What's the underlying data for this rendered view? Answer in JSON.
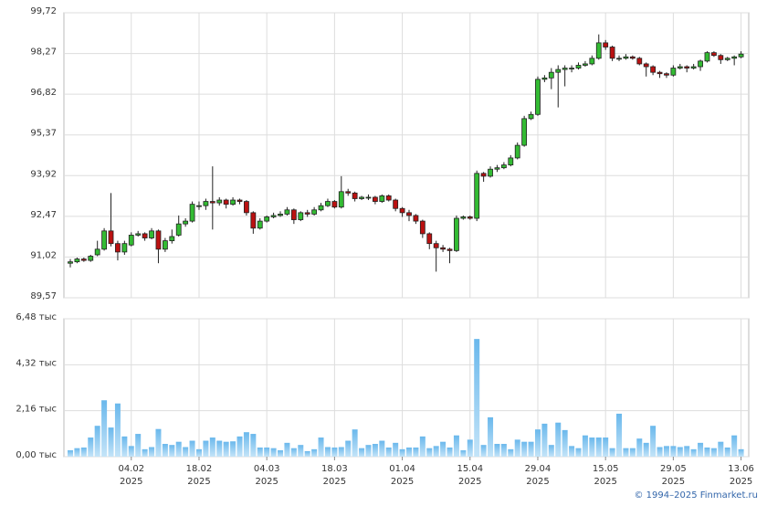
{
  "chart_data": [
    {
      "type": "candlestick",
      "open": [
        90.8,
        90.85,
        90.95,
        90.9,
        91.1,
        91.3,
        91.95,
        91.5,
        91.2,
        91.45,
        91.8,
        91.85,
        91.7,
        91.95,
        91.3,
        91.6,
        91.8,
        92.2,
        92.3,
        92.85,
        92.85,
        93.0,
        92.95,
        93.05,
        92.9,
        93.05,
        93.0,
        92.6,
        92.05,
        92.3,
        92.45,
        92.5,
        92.55,
        92.7,
        92.35,
        92.6,
        92.55,
        92.7,
        92.85,
        93.0,
        92.8,
        93.35,
        93.3,
        93.1,
        93.15,
        93.15,
        93.0,
        93.2,
        93.05,
        92.75,
        92.6,
        92.5,
        92.3,
        91.85,
        91.5,
        91.35,
        91.3,
        91.25,
        92.4,
        92.45,
        92.4,
        94.0,
        93.9,
        94.15,
        94.2,
        94.3,
        94.55,
        95.0,
        95.95,
        96.1,
        97.35,
        97.4,
        97.6,
        97.7,
        97.75,
        97.75,
        97.85,
        97.9,
        98.1,
        98.65,
        98.5,
        98.1,
        98.1,
        98.15,
        98.1,
        97.9,
        97.8,
        97.6,
        97.55,
        97.5,
        97.75,
        97.8,
        97.75,
        97.8,
        98.0,
        98.3,
        98.2,
        98.05,
        98.1,
        98.15
      ],
      "high": [
        90.95,
        91.0,
        91.0,
        91.1,
        91.6,
        92.05,
        93.3,
        91.6,
        91.6,
        91.9,
        91.95,
        91.9,
        92.05,
        92.0,
        91.7,
        92.0,
        92.5,
        92.4,
        93.0,
        93.0,
        93.1,
        94.25,
        93.15,
        93.1,
        93.15,
        93.1,
        93.05,
        92.65,
        92.4,
        92.5,
        92.6,
        92.65,
        92.8,
        92.75,
        92.65,
        92.7,
        92.8,
        92.95,
        93.1,
        93.05,
        93.9,
        93.45,
        93.35,
        93.2,
        93.25,
        93.2,
        93.25,
        93.25,
        93.1,
        92.8,
        92.7,
        92.55,
        92.35,
        91.9,
        91.6,
        91.45,
        91.35,
        92.5,
        92.5,
        92.5,
        94.1,
        94.05,
        94.25,
        94.3,
        94.4,
        94.65,
        95.1,
        96.05,
        96.2,
        97.45,
        97.5,
        97.75,
        97.85,
        97.85,
        97.85,
        97.95,
        98.0,
        98.2,
        98.95,
        98.75,
        98.55,
        98.2,
        98.25,
        98.2,
        98.15,
        97.95,
        97.85,
        97.65,
        97.6,
        97.85,
        97.9,
        97.85,
        97.9,
        98.05,
        98.35,
        98.35,
        98.25,
        98.15,
        98.2,
        98.35
      ],
      "low": [
        90.65,
        90.8,
        90.85,
        90.85,
        91.05,
        91.25,
        91.4,
        90.9,
        91.1,
        91.4,
        91.75,
        91.6,
        91.65,
        90.8,
        91.2,
        91.5,
        91.75,
        92.1,
        92.25,
        92.7,
        92.7,
        92.0,
        92.85,
        92.75,
        92.85,
        92.9,
        92.5,
        91.85,
        92.0,
        92.25,
        92.4,
        92.45,
        92.5,
        92.2,
        92.3,
        92.45,
        92.5,
        92.65,
        92.8,
        92.75,
        92.75,
        93.2,
        93.0,
        93.05,
        93.05,
        92.9,
        92.95,
        93.0,
        92.65,
        92.45,
        92.3,
        92.2,
        91.7,
        91.3,
        90.5,
        91.2,
        90.8,
        91.2,
        92.35,
        92.35,
        92.3,
        93.7,
        93.85,
        94.05,
        94.15,
        94.25,
        94.5,
        94.95,
        95.9,
        96.05,
        97.25,
        97.0,
        96.35,
        97.1,
        97.6,
        97.7,
        97.8,
        97.85,
        98.05,
        98.4,
        98.0,
        98.0,
        98.05,
        98.05,
        97.85,
        97.45,
        97.5,
        97.4,
        97.4,
        97.45,
        97.7,
        97.6,
        97.7,
        97.65,
        97.95,
        98.15,
        97.9,
        98.0,
        97.85,
        98.1
      ],
      "close": [
        90.85,
        90.95,
        90.9,
        91.05,
        91.3,
        91.95,
        91.5,
        91.2,
        91.5,
        91.8,
        91.85,
        91.7,
        91.95,
        91.3,
        91.6,
        91.75,
        92.2,
        92.3,
        92.9,
        92.85,
        93.0,
        92.95,
        93.05,
        92.9,
        93.05,
        93.0,
        92.6,
        92.05,
        92.3,
        92.45,
        92.5,
        92.55,
        92.7,
        92.35,
        92.6,
        92.55,
        92.7,
        92.85,
        93.0,
        92.8,
        93.35,
        93.3,
        93.1,
        93.15,
        93.15,
        93.0,
        93.2,
        93.05,
        92.75,
        92.6,
        92.5,
        92.3,
        91.85,
        91.5,
        91.35,
        91.3,
        91.25,
        92.4,
        92.45,
        92.4,
        94.0,
        93.9,
        94.15,
        94.2,
        94.3,
        94.55,
        95.0,
        95.95,
        96.1,
        97.35,
        97.4,
        97.6,
        97.7,
        97.75,
        97.75,
        97.85,
        97.9,
        98.1,
        98.65,
        98.5,
        98.1,
        98.1,
        98.15,
        98.1,
        97.9,
        97.8,
        97.6,
        97.55,
        97.5,
        97.75,
        97.8,
        97.75,
        97.8,
        98.0,
        98.3,
        98.2,
        98.05,
        98.1,
        98.15,
        98.25
      ],
      "up_color": "#33bb33",
      "down_color": "#bb1111",
      "ylim": [
        89.57,
        99.72
      ],
      "yticks": [
        {
          "value": 89.57,
          "label": "89,57"
        },
        {
          "value": 91.02,
          "label": "91,02"
        },
        {
          "value": 92.47,
          "label": "92,47"
        },
        {
          "value": 93.92,
          "label": "93,92"
        },
        {
          "value": 95.37,
          "label": "95,37"
        },
        {
          "value": 96.82,
          "label": "96,82"
        },
        {
          "value": 98.27,
          "label": "98,27"
        },
        {
          "value": 99.72,
          "label": "99,72"
        }
      ],
      "grid": true
    },
    {
      "type": "bar",
      "categories": [
        null,
        null,
        null,
        null,
        null,
        null,
        null,
        null,
        null,
        [
          "04.02",
          "2025"
        ],
        null,
        null,
        null,
        null,
        null,
        null,
        null,
        null,
        null,
        [
          "18.02",
          "2025"
        ],
        null,
        null,
        null,
        null,
        null,
        null,
        null,
        null,
        null,
        [
          "04.03",
          "2025"
        ],
        null,
        null,
        null,
        null,
        null,
        null,
        null,
        null,
        null,
        [
          "18.03",
          "2025"
        ],
        null,
        null,
        null,
        null,
        null,
        null,
        null,
        null,
        null,
        [
          "01.04",
          "2025"
        ],
        null,
        null,
        null,
        null,
        null,
        null,
        null,
        null,
        null,
        [
          "15.04",
          "2025"
        ],
        null,
        null,
        null,
        null,
        null,
        null,
        null,
        null,
        null,
        [
          "29.04",
          "2025"
        ],
        null,
        null,
        null,
        null,
        null,
        null,
        null,
        null,
        null,
        [
          "15.05",
          "2025"
        ],
        null,
        null,
        null,
        null,
        null,
        null,
        null,
        null,
        null,
        [
          "29.05",
          "2025"
        ],
        null,
        null,
        null,
        null,
        null,
        null,
        null,
        null,
        null,
        [
          "13.06",
          "2025"
        ]
      ],
      "values": [
        0.3,
        0.4,
        0.43,
        0.9,
        1.45,
        2.65,
        1.37,
        2.5,
        0.95,
        0.5,
        1.07,
        0.35,
        0.45,
        1.3,
        0.6,
        0.55,
        0.7,
        0.45,
        0.75,
        0.35,
        0.75,
        0.9,
        0.75,
        0.7,
        0.72,
        0.95,
        1.15,
        1.07,
        0.43,
        0.43,
        0.4,
        0.3,
        0.65,
        0.4,
        0.55,
        0.26,
        0.35,
        0.9,
        0.45,
        0.43,
        0.45,
        0.75,
        1.28,
        0.4,
        0.55,
        0.6,
        0.75,
        0.43,
        0.65,
        0.35,
        0.43,
        0.43,
        0.95,
        0.4,
        0.5,
        0.7,
        0.43,
        1.0,
        0.3,
        0.8,
        5.53,
        0.55,
        1.85,
        0.6,
        0.6,
        0.35,
        0.8,
        0.7,
        0.7,
        1.28,
        1.55,
        0.55,
        1.6,
        1.25,
        0.5,
        0.4,
        1.0,
        0.9,
        0.9,
        0.9,
        0.4,
        2.02,
        0.4,
        0.4,
        0.85,
        0.65,
        1.45,
        0.45,
        0.5,
        0.5,
        0.45,
        0.5,
        0.35,
        0.65,
        0.43,
        0.4,
        0.7,
        0.43,
        1.0,
        0.35
      ],
      "color": "#8ecbf0",
      "ylim": [
        0,
        6.48
      ],
      "yticks": [
        {
          "value": 0,
          "label": "0,00 тыс"
        },
        {
          "value": 2.16,
          "label": "2,16 тыс"
        },
        {
          "value": 4.32,
          "label": "4,32 тыс"
        },
        {
          "value": 6.48,
          "label": "6,48 тыс"
        }
      ],
      "grid": true
    }
  ],
  "credit": "© 1994–2025 Finmarket.ru"
}
